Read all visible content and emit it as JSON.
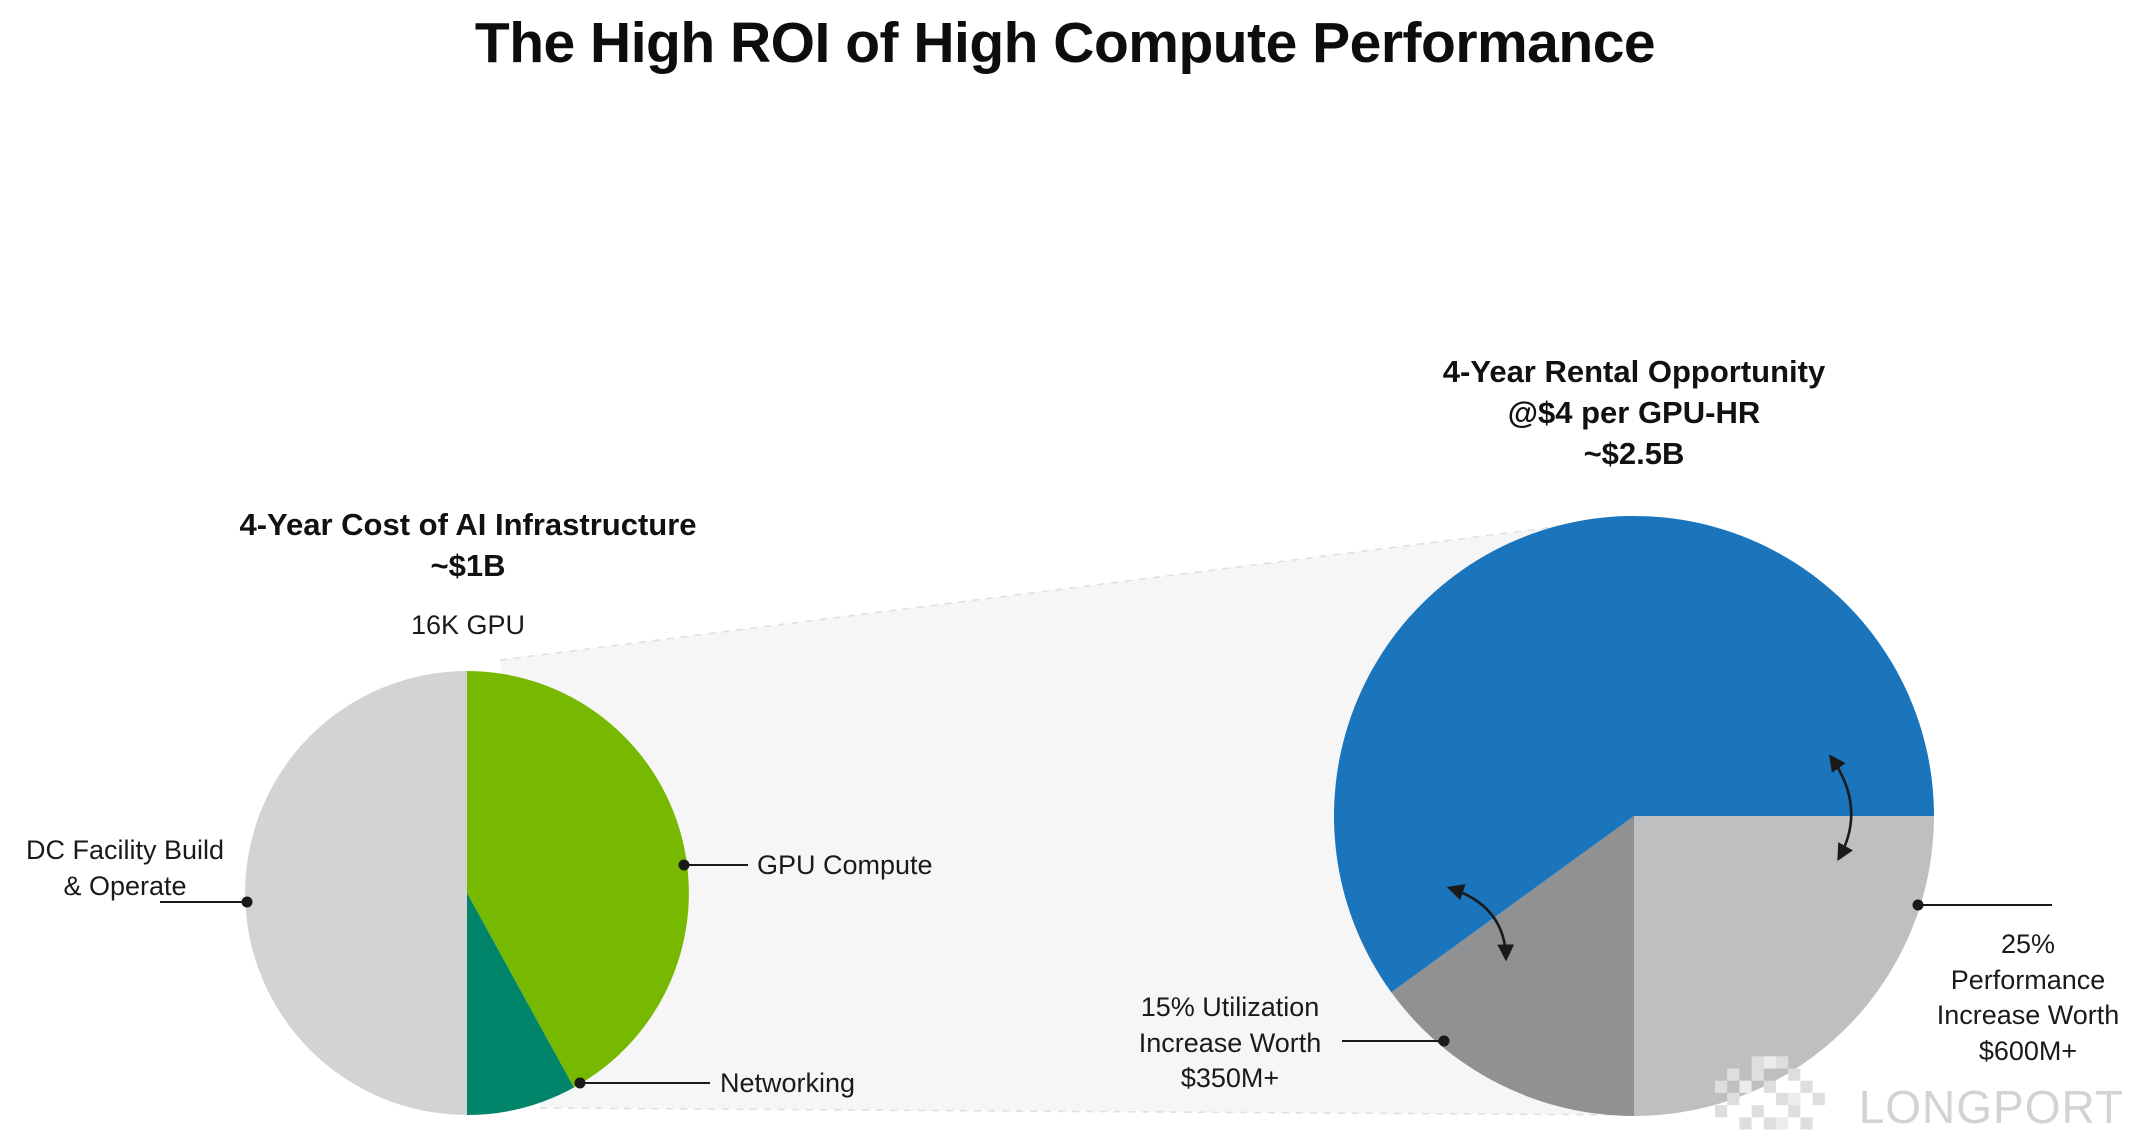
{
  "title": "The High ROI of High Compute Performance",
  "chart_data": [
    {
      "type": "pie",
      "name": "cost",
      "heading": "4-Year Cost of AI Infrastructure\n~$1B",
      "total": "~$1B",
      "top_annotation": "16K GPU",
      "start_angle": 0,
      "slices": [
        {
          "id": "gpu-compute",
          "label": "GPU Compute",
          "percent": 42,
          "color_key": "green"
        },
        {
          "id": "networking",
          "label": "Networking",
          "percent": 8,
          "color_key": "teal"
        },
        {
          "id": "dc-facility",
          "label": "DC Facility Build\n& Operate",
          "percent": 50,
          "color_key": "light_gray"
        }
      ]
    },
    {
      "type": "pie",
      "name": "rental",
      "heading": "4-Year Rental Opportunity\n@$4 per GPU-HR\n~$2.5B",
      "total": "~$2.5B",
      "start_angle": 90,
      "slices": [
        {
          "id": "performance",
          "label": "25%\nPerformance\nIncrease Worth\n$600M+",
          "percent": 25,
          "color_key": "gray_light"
        },
        {
          "id": "utilization",
          "label": "15% Utilization\nIncrease Worth\n$350M+",
          "percent": 15,
          "color_key": "gray_mid"
        },
        {
          "id": "rental-revenue",
          "label": "",
          "percent": 60,
          "color_key": "blue"
        }
      ]
    }
  ],
  "colors": {
    "green": "#76b900",
    "teal": "#00856a",
    "light_gray": "#d2d3d5",
    "blue": "#1b75bc",
    "gray_mid": "#8f9193",
    "gray_light": "#bdbfc1",
    "funnel_fill": "#f6f6f6",
    "funnel_edge": "#e0e0e0",
    "connector": "#1a1a1a",
    "watermark": "#d3d3d3"
  },
  "watermark": {
    "brand": "LONGPORT"
  }
}
